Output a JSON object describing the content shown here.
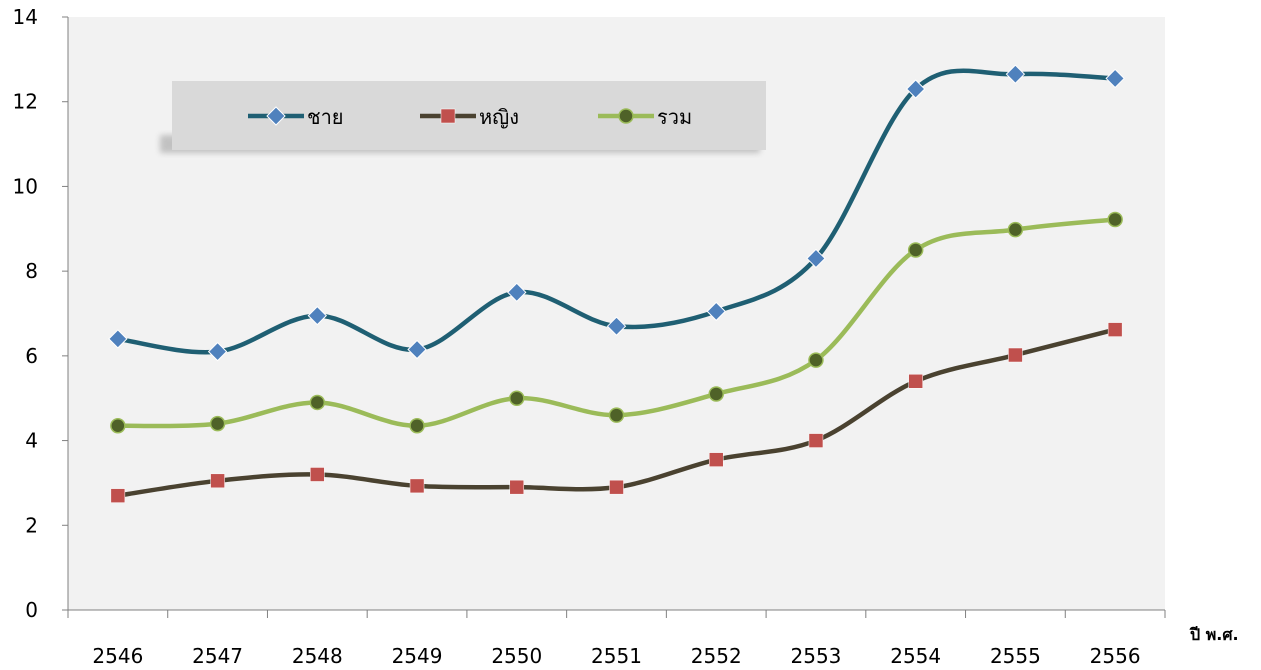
{
  "chart_data": {
    "type": "line",
    "categories": [
      "2546",
      "2547",
      "2548",
      "2549",
      "2550",
      "2551",
      "2552",
      "2553",
      "2554",
      "2555",
      "2556"
    ],
    "x_unit_label": "ปี พ.ศ.",
    "ylim": [
      0,
      14
    ],
    "yticks": [
      "0",
      "2",
      "4",
      "6",
      "8",
      "10",
      "12",
      "14"
    ],
    "grid": false,
    "smooth": true,
    "legend_position": "top-left",
    "series": [
      {
        "name": "ชาย",
        "color": "#1f5f73",
        "marker": "diamond",
        "marker_color": "#4f81bd",
        "values": [
          6.4,
          6.1,
          6.95,
          6.15,
          7.5,
          6.7,
          7.05,
          8.3,
          12.3,
          12.65,
          12.55
        ]
      },
      {
        "name": "หญิง",
        "color": "#4a4230",
        "marker": "square",
        "marker_color": "#c0504d",
        "values": [
          2.7,
          3.05,
          3.2,
          2.93,
          2.9,
          2.9,
          3.55,
          4.0,
          5.4,
          6.02,
          6.62
        ]
      },
      {
        "name": "รวม",
        "color": "#9bbb59",
        "marker": "circle",
        "marker_color": "#4f6228",
        "values": [
          4.35,
          4.4,
          4.9,
          4.35,
          5.0,
          4.6,
          5.1,
          5.9,
          8.5,
          8.98,
          9.22
        ]
      }
    ]
  }
}
